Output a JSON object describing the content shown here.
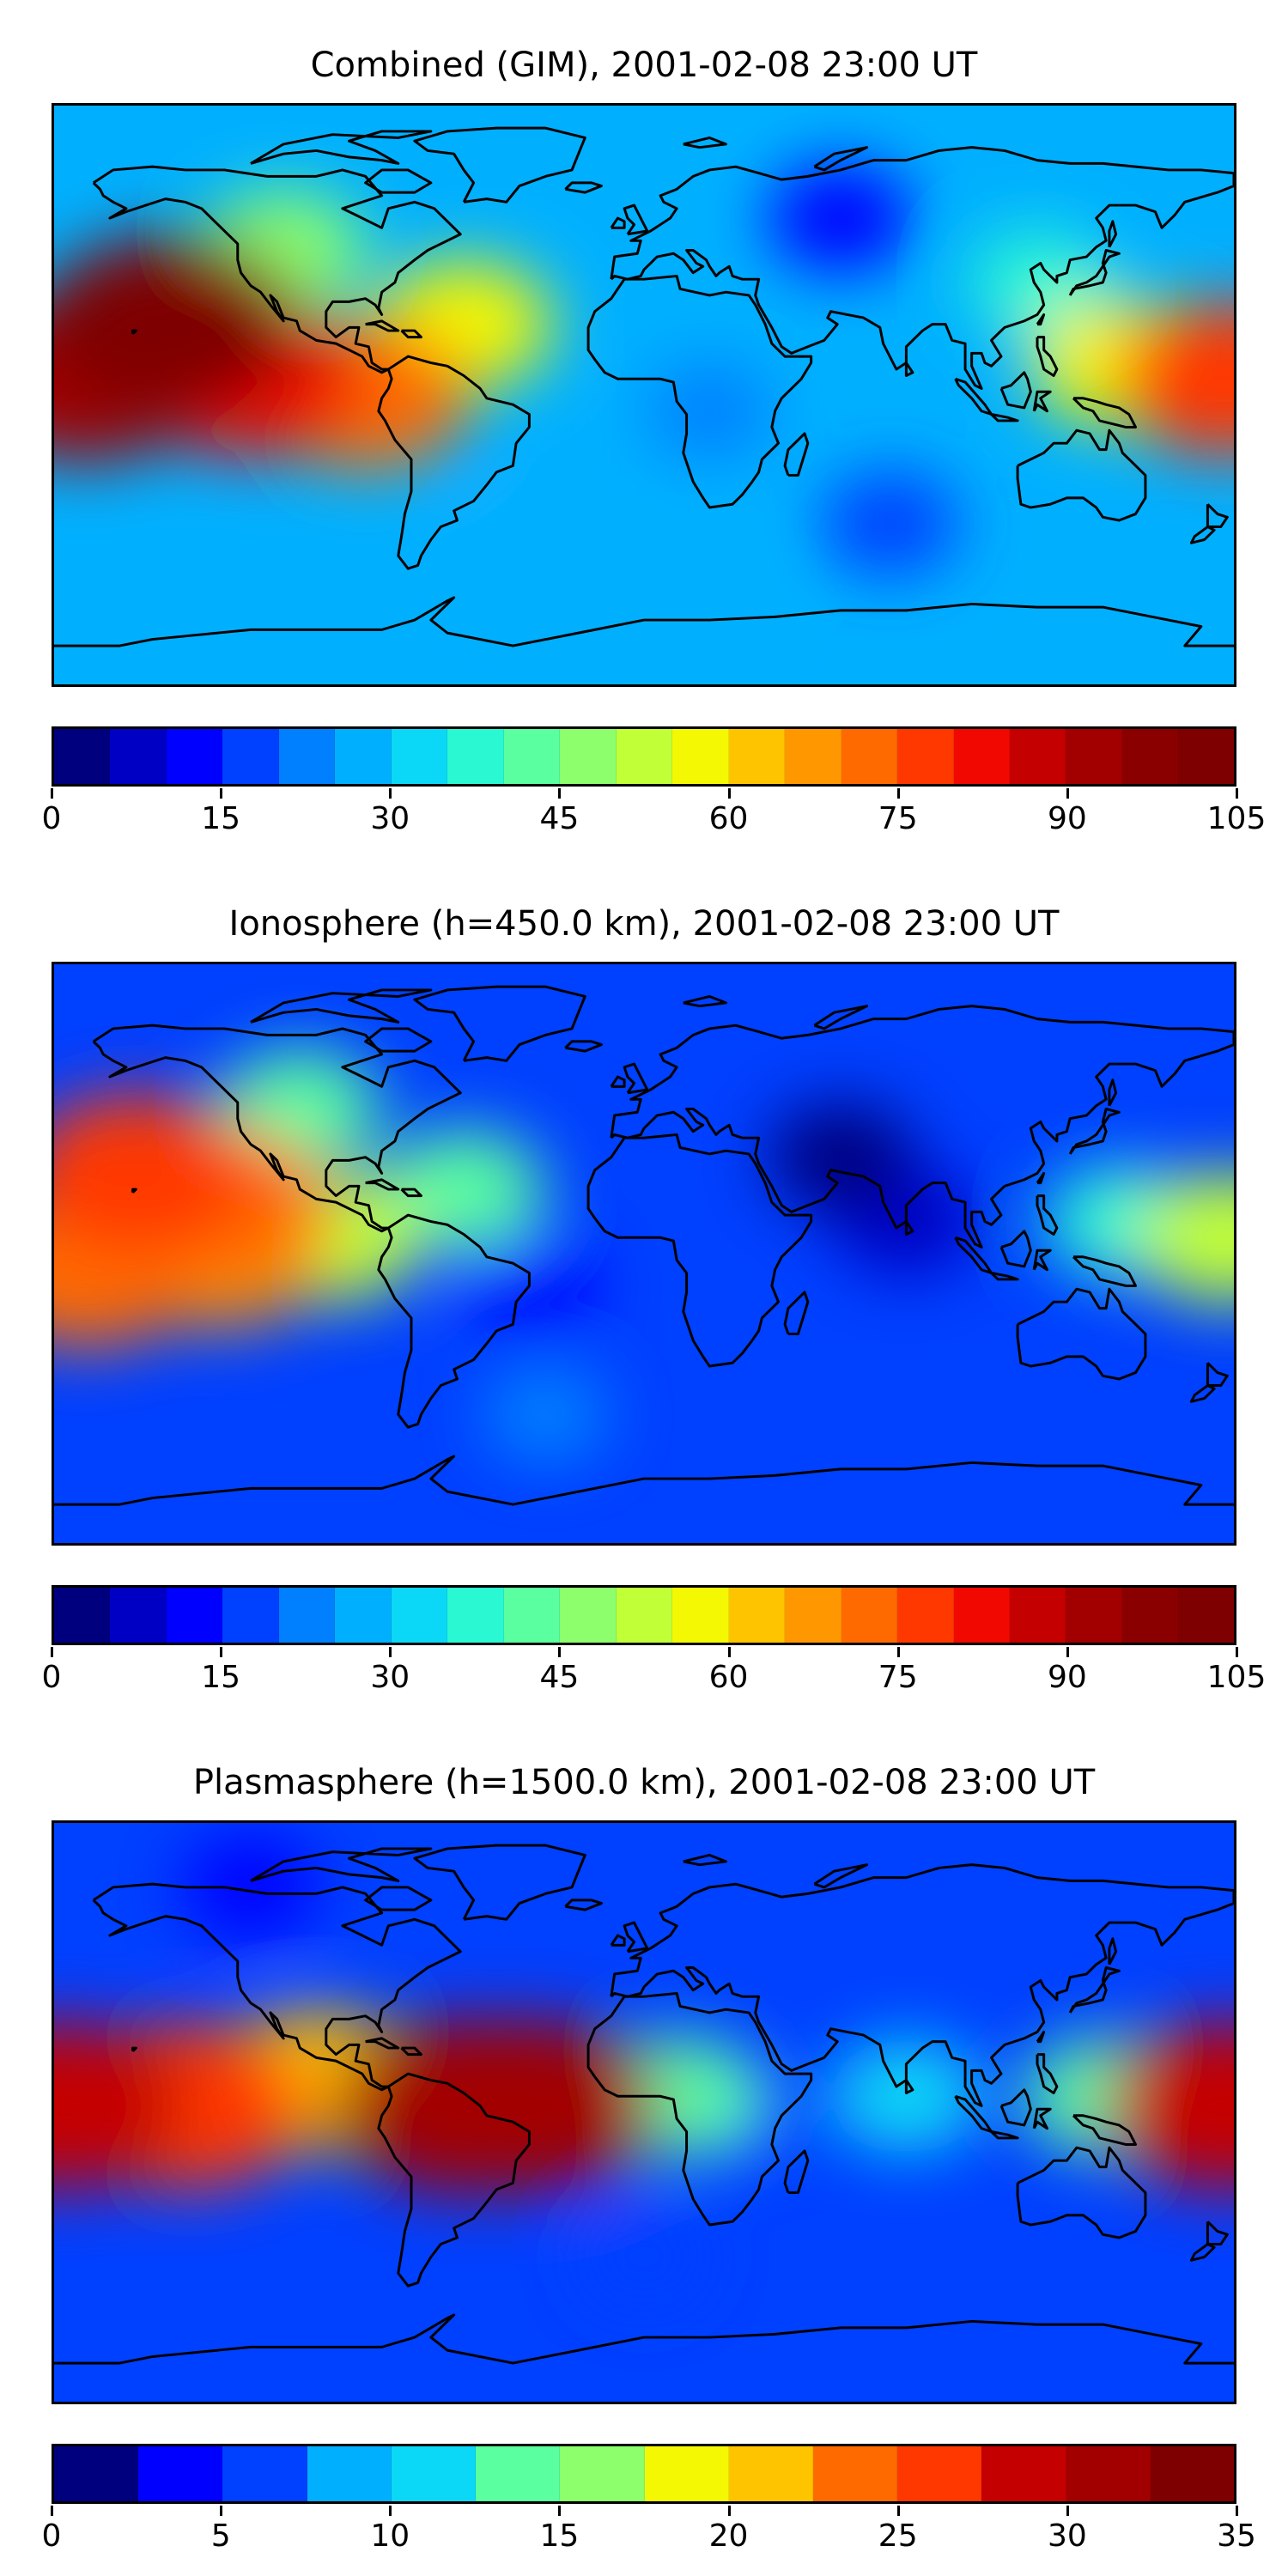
{
  "chart_data": [
    {
      "type": "heatmap",
      "title": "Combined (GIM), 2001-02-08 23:00 UT",
      "colorbar": {
        "ticks": [
          "0",
          "15",
          "30",
          "45",
          "60",
          "75",
          "90",
          "105"
        ],
        "range": [
          0,
          105
        ],
        "step": 5,
        "levels": 21
      },
      "hotspots": [
        {
          "lon": -145,
          "lat": 22,
          "value": 100
        },
        {
          "lon": -170,
          "lat": 5,
          "value": 90
        },
        {
          "lon": -120,
          "lat": 5,
          "value": 80
        },
        {
          "lon": -85,
          "lat": 0,
          "value": 72
        },
        {
          "lon": -55,
          "lat": 22,
          "value": 55
        },
        {
          "lon": -110,
          "lat": 45,
          "value": 48
        },
        {
          "lon": 178,
          "lat": 5,
          "value": 78
        },
        {
          "lon": 145,
          "lat": 10,
          "value": 55
        },
        {
          "lon": 120,
          "lat": 35,
          "value": 35
        },
        {
          "lon": 20,
          "lat": -5,
          "value": 22
        },
        {
          "lon": 60,
          "lat": 55,
          "value": 12
        },
        {
          "lon": 75,
          "lat": -40,
          "value": 15
        },
        {
          "lon": -30,
          "lat": -50,
          "value": 28
        },
        {
          "lon": 20,
          "lat": -60,
          "value": 25
        }
      ],
      "background_value": 25
    },
    {
      "type": "heatmap",
      "title": "Ionosphere  (h=450.0 km), 2001-02-08 23:00 UT",
      "colorbar": {
        "ticks": [
          "0",
          "15",
          "30",
          "45",
          "60",
          "75",
          "90",
          "105"
        ],
        "range": [
          0,
          105
        ],
        "step": 5,
        "levels": 21
      },
      "hotspots": [
        {
          "lon": -155,
          "lat": 25,
          "value": 76
        },
        {
          "lon": -130,
          "lat": 15,
          "value": 74
        },
        {
          "lon": -170,
          "lat": -5,
          "value": 72
        },
        {
          "lon": -130,
          "lat": 0,
          "value": 65
        },
        {
          "lon": -95,
          "lat": 5,
          "value": 50
        },
        {
          "lon": -55,
          "lat": 20,
          "value": 40
        },
        {
          "lon": -105,
          "lat": 45,
          "value": 40
        },
        {
          "lon": 178,
          "lat": 5,
          "value": 52
        },
        {
          "lon": 145,
          "lat": 10,
          "value": 35
        },
        {
          "lon": 60,
          "lat": 30,
          "value": 4
        },
        {
          "lon": 80,
          "lat": 10,
          "value": 5
        },
        {
          "lon": -35,
          "lat": -10,
          "value": 10
        },
        {
          "lon": -30,
          "lat": -50,
          "value": 22
        }
      ],
      "background_value": 18
    },
    {
      "type": "heatmap",
      "title": "Plasmasphere (h=1500.0 km), 2001-02-08 23:00 UT",
      "colorbar": {
        "ticks": [
          "0",
          "5",
          "10",
          "15",
          "20",
          "25",
          "30",
          "35"
        ],
        "range": [
          0,
          35
        ],
        "step": 2.5,
        "levels": 14
      },
      "hotspots": [
        {
          "lon": -55,
          "lat": 2,
          "value": 30
        },
        {
          "lon": -35,
          "lat": 2,
          "value": 30
        },
        {
          "lon": -140,
          "lat": 2,
          "value": 27
        },
        {
          "lon": -178,
          "lat": 2,
          "value": 28
        },
        {
          "lon": 178,
          "lat": 2,
          "value": 28
        },
        {
          "lon": -100,
          "lat": 10,
          "value": 20
        },
        {
          "lon": 10,
          "lat": 5,
          "value": 14
        },
        {
          "lon": 80,
          "lat": 5,
          "value": 12
        },
        {
          "lon": 140,
          "lat": 5,
          "value": 13
        },
        {
          "lon": 30,
          "lat": 0,
          "value": 5
        },
        {
          "lon": -120,
          "lat": 70,
          "value": 3
        },
        {
          "lon": 0,
          "lat": -45,
          "value": 6
        }
      ],
      "background_value": 6
    }
  ],
  "jet_colors": [
    "#00007f",
    "#0000c4",
    "#0000ff",
    "#0040ff",
    "#0080ff",
    "#00b0ff",
    "#0ad8f6",
    "#29f8d3",
    "#5affa0",
    "#8dff6c",
    "#c1ff37",
    "#f4f802",
    "#ffc400",
    "#ff9800",
    "#ff6a00",
    "#ff3800",
    "#f10800",
    "#c40000",
    "#a20000",
    "#8a0000",
    "#7f0000"
  ]
}
